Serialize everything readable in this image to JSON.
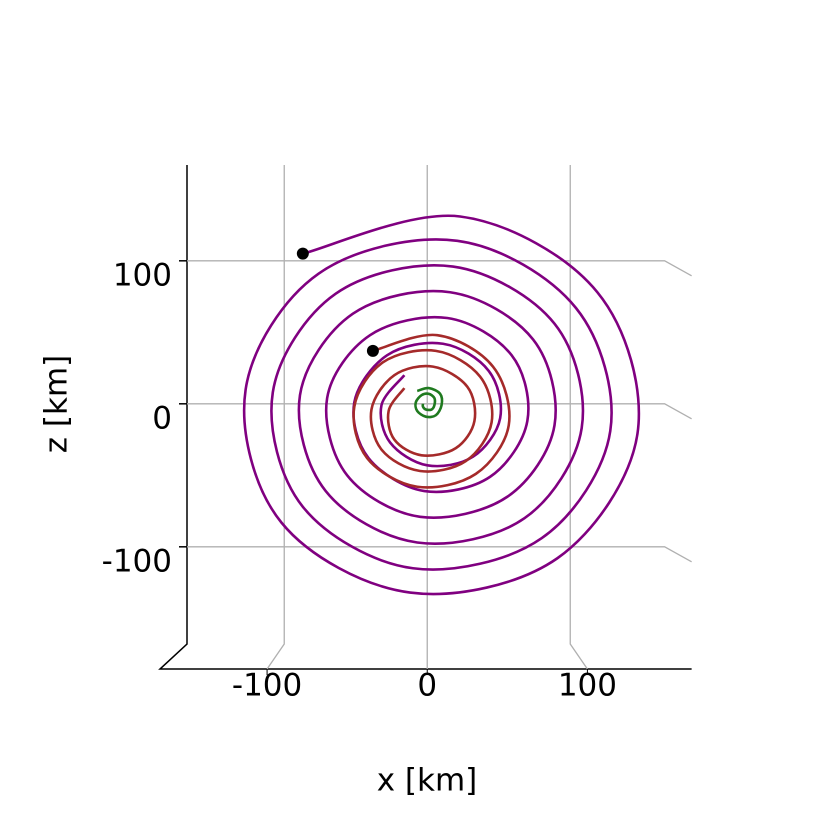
{
  "chart_data": {
    "type": "line",
    "x_label": "x [km]",
    "y_label": "z [km]",
    "xlim": [
      -168,
      166
    ],
    "ylim": [
      -168,
      167
    ],
    "xticks": [
      -100,
      0,
      100
    ],
    "yticks": [
      -100,
      0,
      100
    ],
    "grid": true,
    "series": [
      {
        "color": "#800080",
        "x": [
          -87,
          23,
          119,
          147,
          91,
          -12,
          -102,
          -127,
          -76,
          21,
          104,
          128,
          80,
          -10,
          -87,
          -108,
          -64,
          18,
          89,
          108,
          68,
          -7,
          -71,
          -89,
          -52,
          16,
          74,
          89,
          56,
          -5,
          -56,
          -70,
          -40,
          14,
          59,
          70,
          44,
          -2,
          -41,
          -51,
          -28,
          11,
          43,
          51,
          32,
          0,
          -26,
          -32,
          -16
        ],
        "values": [
          105,
          131,
          78,
          -21,
          -108,
          -132,
          -83,
          10,
          91,
          114,
          67,
          -19,
          -94,
          -115,
          -72,
          8,
          77,
          96,
          56,
          -17,
          -80,
          -97,
          -61,
          6,
          63,
          78,
          45,
          -15,
          -65,
          -79,
          -50,
          4,
          48,
          60,
          34,
          -12,
          -51,
          -61,
          -38,
          1,
          34,
          42,
          23,
          -10,
          -37,
          -43,
          -27,
          -1,
          20
        ]
      },
      {
        "color": "#a52a2a",
        "x": [
          -38,
          7,
          46,
          57,
          34,
          -7,
          -42,
          -51,
          -31,
          6,
          37,
          45,
          27,
          -5,
          -32,
          -39,
          -23,
          4,
          28,
          33,
          20,
          -4,
          -23,
          -27,
          -16
        ],
        "values": [
          37,
          48,
          26,
          -15,
          -49,
          -58,
          -38,
          -2,
          29,
          37,
          19,
          -13,
          -40,
          -47,
          -32,
          -4,
          20,
          26,
          12,
          -12,
          -31,
          -36,
          -25,
          -5,
          11
        ]
      },
      {
        "color": "#1f7a1f",
        "x": [
          -7,
          1,
          9,
          10,
          6,
          -1,
          -7,
          -8,
          -4,
          1,
          5,
          5,
          3,
          -1,
          -3,
          -3
        ],
        "values": [
          9,
          11,
          7,
          -1,
          -8,
          -9,
          -5,
          1,
          6,
          7,
          4,
          -1,
          -4,
          -4,
          -2,
          0
        ]
      }
    ]
  }
}
